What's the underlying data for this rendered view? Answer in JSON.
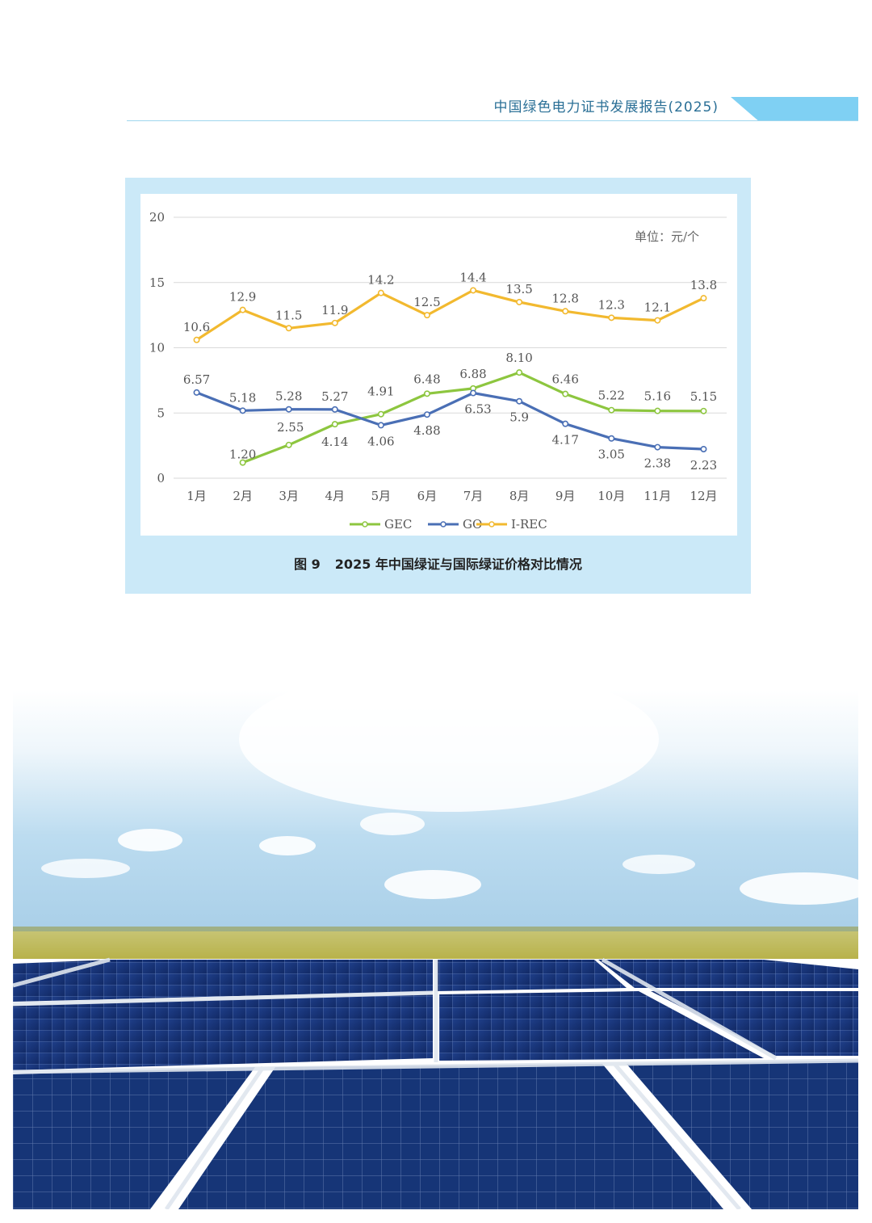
{
  "header": {
    "title": "中国绿色电力证书发展报告(2025)"
  },
  "figure": {
    "number": "图 9",
    "caption": "2025 年中国绿证与国际绿证价格对比情况",
    "unit": "单位：元/个"
  },
  "chart_data": {
    "type": "line",
    "title": "",
    "xlabel": "",
    "ylabel": "",
    "ylim": [
      0,
      20
    ],
    "yticks": [
      "0",
      "5",
      "10",
      "15",
      "20"
    ],
    "grid": true,
    "legend_position": "bottom",
    "categories": [
      "1月",
      "2月",
      "3月",
      "4月",
      "5月",
      "6月",
      "7月",
      "8月",
      "9月",
      "10月",
      "11月",
      "12月"
    ],
    "series": [
      {
        "name": "GEC",
        "color": "#8dc63f",
        "values": [
          null,
          1.2,
          2.55,
          4.14,
          4.91,
          6.48,
          6.88,
          8.1,
          6.46,
          5.22,
          5.16,
          5.15
        ],
        "labels": [
          "",
          "1.20",
          "2.55",
          "4.14",
          "4.91",
          "6.48",
          "6.88",
          "8.10",
          "6.46",
          "5.22",
          "5.16",
          "5.15"
        ]
      },
      {
        "name": "GO",
        "color": "#4a6fb5",
        "values": [
          6.57,
          5.18,
          5.28,
          5.27,
          4.06,
          4.88,
          6.53,
          5.9,
          4.17,
          3.05,
          2.38,
          2.23
        ],
        "labels": [
          "6.57",
          "5.18",
          "5.28",
          "5.27",
          "4.06",
          "4.88",
          "6.53",
          "5.9",
          "4.17",
          "3.05",
          "2.38",
          "2.23"
        ]
      },
      {
        "name": "I-REC",
        "color": "#f2b92f",
        "values": [
          10.6,
          12.9,
          11.5,
          11.9,
          14.2,
          12.5,
          14.4,
          13.5,
          12.8,
          12.3,
          12.1,
          13.8
        ],
        "labels": [
          "10.6",
          "12.9",
          "11.5",
          "11.9",
          "14.2",
          "12.5",
          "14.4",
          "13.5",
          "12.8",
          "12.3",
          "12.1",
          "13.8"
        ]
      }
    ]
  },
  "photo": {
    "subject": "solar-panel-field-photo"
  }
}
